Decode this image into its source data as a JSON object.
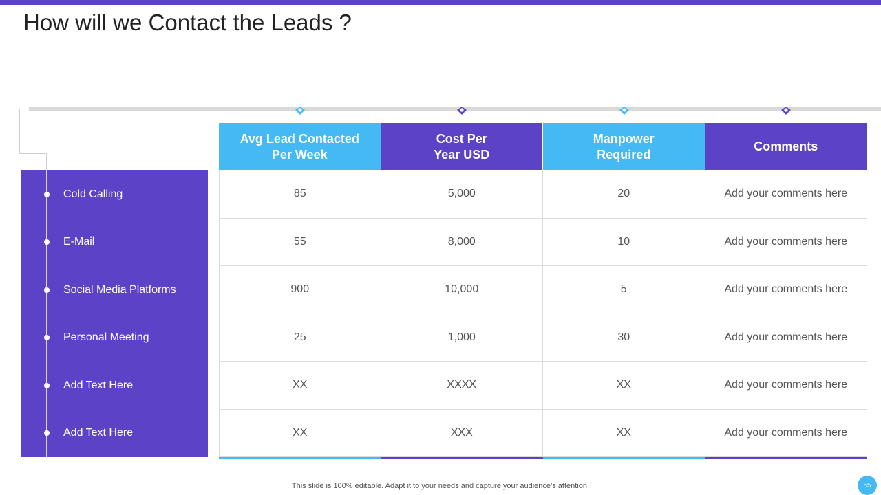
{
  "slide": {
    "title": "How will we Contact the Leads ?",
    "footer_note": "This slide is 100% editable. Adapt it to your needs and capture your audience’s attention.",
    "page_number": "55"
  },
  "colors": {
    "purple": "#5b42c6",
    "blue": "#45b9f4",
    "rail": "#d9d9d9"
  },
  "sidebar": {
    "items": [
      {
        "label": "Cold Calling"
      },
      {
        "label": "E-Mail"
      },
      {
        "label": "Social Media Platforms"
      },
      {
        "label": "Personal Meeting"
      },
      {
        "label": "Add Text Here"
      },
      {
        "label": "Add Text Here"
      }
    ]
  },
  "table": {
    "headers": [
      {
        "line1": "Avg Lead Contacted",
        "line2": "Per Week",
        "color": "blue"
      },
      {
        "line1": "Cost Per",
        "line2": "Year USD",
        "color": "purple"
      },
      {
        "line1": "Manpower",
        "line2": "Required",
        "color": "blue"
      },
      {
        "line1": "Comments",
        "line2": "",
        "color": "purple"
      }
    ],
    "rows": [
      [
        "85",
        "5,000",
        "20",
        "Add your comments here"
      ],
      [
        "55",
        "8,000",
        "10",
        "Add your comments here"
      ],
      [
        "900",
        "10,000",
        "5",
        "Add your comments here"
      ],
      [
        "25",
        "1,000",
        "30",
        "Add your comments here"
      ],
      [
        "XX",
        "XXXX",
        "XX",
        "Add your comments here"
      ],
      [
        "XX",
        "XXX",
        "XX",
        "Add your comments here"
      ]
    ]
  }
}
